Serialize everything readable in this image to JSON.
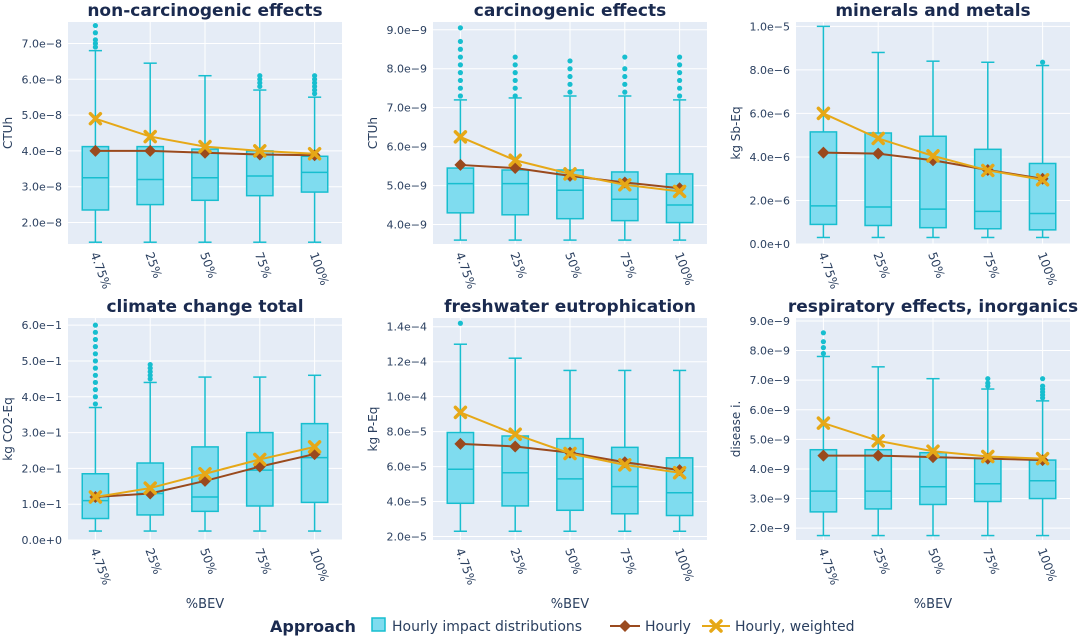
{
  "colors": {
    "plot_bg": "#e5ecf6",
    "grid": "#ffffff",
    "box_fill": "#7fdcef",
    "box_line": "#17becf",
    "hourly": "#9a4a1e",
    "weighted": "#e6a817",
    "text": "#2a3f5f",
    "title": "#1a2a4f"
  },
  "legend": {
    "title": "Approach",
    "items": [
      {
        "label": "Hourly impact distributions",
        "kind": "box"
      },
      {
        "label": "Hourly",
        "kind": "hourly"
      },
      {
        "label": "Hourly, weighted",
        "kind": "weighted"
      }
    ]
  },
  "chart_data": [
    {
      "type": "box+line",
      "title": "non-carcinogenic effects",
      "ylabel": "CTUh",
      "xlabel": "",
      "categories": [
        "4.75%",
        "25%",
        "50%",
        "75%",
        "100%"
      ],
      "ylim": [
        1.4e-08,
        7.6e-08
      ],
      "yticks": [
        2e-08,
        3e-08,
        4e-08,
        5e-08,
        6e-08,
        7e-08
      ],
      "ytick_labels": [
        "2.0e−8",
        "3.0e−8",
        "4.0e−8",
        "5.0e−8",
        "6.0e−8",
        "7.0e−8"
      ],
      "boxes": [
        {
          "min": 1.45e-08,
          "q1": 2.35e-08,
          "median": 3.25e-08,
          "q3": 4.12e-08,
          "max": 6.8e-08,
          "outliers": [
            6.9e-08,
            7e-08,
            7.1e-08,
            7.3e-08,
            7.5e-08
          ]
        },
        {
          "min": 1.45e-08,
          "q1": 2.5e-08,
          "median": 3.2e-08,
          "q3": 4.12e-08,
          "max": 6.45e-08,
          "outliers": []
        },
        {
          "min": 1.45e-08,
          "q1": 2.62e-08,
          "median": 3.25e-08,
          "q3": 4.05e-08,
          "max": 6.1e-08,
          "outliers": []
        },
        {
          "min": 1.45e-08,
          "q1": 2.75e-08,
          "median": 3.3e-08,
          "q3": 4e-08,
          "max": 5.7e-08,
          "outliers": [
            5.8e-08,
            5.9e-08,
            6e-08,
            6.1e-08
          ]
        },
        {
          "min": 1.45e-08,
          "q1": 2.85e-08,
          "median": 3.4e-08,
          "q3": 3.85e-08,
          "max": 5.5e-08,
          "outliers": [
            5.6e-08,
            5.7e-08,
            5.8e-08,
            5.9e-08,
            6e-08,
            6.1e-08
          ]
        }
      ],
      "series": [
        {
          "name": "Hourly",
          "values": [
            4e-08,
            4e-08,
            3.95e-08,
            3.9e-08,
            3.88e-08
          ]
        },
        {
          "name": "Hourly, weighted",
          "values": [
            4.9e-08,
            4.4e-08,
            4.12e-08,
            4e-08,
            3.92e-08
          ]
        }
      ]
    },
    {
      "type": "box+line",
      "title": "carcinogenic effects",
      "ylabel": "CTUh",
      "xlabel": "",
      "categories": [
        "4.75%",
        "25%",
        "50%",
        "75%",
        "100%"
      ],
      "ylim": [
        3.5e-09,
        9.2e-09
      ],
      "yticks": [
        4e-09,
        5e-09,
        6e-09,
        7e-09,
        8e-09,
        9e-09
      ],
      "ytick_labels": [
        "4.0e−9",
        "5.0e−9",
        "6.0e−9",
        "7.0e−9",
        "8.0e−9",
        "9.0e−9"
      ],
      "boxes": [
        {
          "min": 3.6e-09,
          "q1": 4.3e-09,
          "median": 5.05e-09,
          "q3": 5.45e-09,
          "max": 7.2e-09,
          "outliers": [
            7.3e-09,
            7.5e-09,
            7.7e-09,
            7.9e-09,
            8.1e-09,
            8.3e-09,
            8.5e-09,
            8.7e-09,
            9.05e-09
          ]
        },
        {
          "min": 3.6e-09,
          "q1": 4.25e-09,
          "median": 5.05e-09,
          "q3": 5.4e-09,
          "max": 7.25e-09,
          "outliers": [
            7.3e-09,
            7.5e-09,
            7.7e-09,
            7.9e-09,
            8.1e-09,
            8.3e-09
          ]
        },
        {
          "min": 3.6e-09,
          "q1": 4.15e-09,
          "median": 4.88e-09,
          "q3": 5.4e-09,
          "max": 7.3e-09,
          "outliers": [
            7.4e-09,
            7.6e-09,
            7.8e-09,
            8e-09,
            8.2e-09
          ]
        },
        {
          "min": 3.6e-09,
          "q1": 4.1e-09,
          "median": 4.65e-09,
          "q3": 5.35e-09,
          "max": 7.3e-09,
          "outliers": [
            7.4e-09,
            7.6e-09,
            7.8e-09,
            8e-09,
            8.3e-09
          ]
        },
        {
          "min": 3.6e-09,
          "q1": 4.05e-09,
          "median": 4.5e-09,
          "q3": 5.3e-09,
          "max": 7.2e-09,
          "outliers": [
            7.3e-09,
            7.5e-09,
            7.7e-09,
            7.9e-09,
            8.1e-09,
            8.3e-09
          ]
        }
      ],
      "series": [
        {
          "name": "Hourly",
          "values": [
            5.53e-09,
            5.45e-09,
            5.25e-09,
            5.08e-09,
            4.93e-09
          ]
        },
        {
          "name": "Hourly, weighted",
          "values": [
            6.25e-09,
            5.65e-09,
            5.3e-09,
            5.02e-09,
            4.85e-09
          ]
        }
      ]
    },
    {
      "type": "box+line",
      "title": "minerals and metals",
      "ylabel": "kg Sb-Eq",
      "xlabel": "",
      "categories": [
        "4.75%",
        "25%",
        "50%",
        "75%",
        "100%"
      ],
      "ylim": [
        0,
        1.02e-05
      ],
      "yticks": [
        0,
        2e-06,
        4e-06,
        6e-06,
        8e-06,
        1e-05
      ],
      "ytick_labels": [
        "0.0e+0",
        "2.0e−6",
        "4.0e−6",
        "6.0e−6",
        "8.0e−6",
        "1.0e−5"
      ],
      "boxes": [
        {
          "min": 3e-07,
          "q1": 9e-07,
          "median": 1.75e-06,
          "q3": 5.15e-06,
          "max": 1e-05,
          "outliers": []
        },
        {
          "min": 3e-07,
          "q1": 8.5e-07,
          "median": 1.7e-06,
          "q3": 5.1e-06,
          "max": 8.8e-06,
          "outliers": []
        },
        {
          "min": 3e-07,
          "q1": 7.5e-07,
          "median": 1.6e-06,
          "q3": 4.95e-06,
          "max": 8.4e-06,
          "outliers": []
        },
        {
          "min": 3e-07,
          "q1": 7e-07,
          "median": 1.5e-06,
          "q3": 4.35e-06,
          "max": 8.35e-06,
          "outliers": []
        },
        {
          "min": 3e-07,
          "q1": 6.5e-07,
          "median": 1.4e-06,
          "q3": 3.7e-06,
          "max": 8.2e-06,
          "outliers": [
            8.35e-06
          ]
        }
      ],
      "series": [
        {
          "name": "Hourly",
          "values": [
            4.2e-06,
            4.15e-06,
            3.85e-06,
            3.4e-06,
            3e-06
          ]
        },
        {
          "name": "Hourly, weighted",
          "values": [
            6e-06,
            4.85e-06,
            4.05e-06,
            3.38e-06,
            2.95e-06
          ]
        }
      ]
    },
    {
      "type": "box+line",
      "title": "climate change total",
      "ylabel": "kg CO2-Eq",
      "xlabel": "%BEV",
      "categories": [
        "4.75%",
        "25%",
        "50%",
        "75%",
        "100%"
      ],
      "ylim": [
        0,
        0.62
      ],
      "yticks": [
        0,
        0.1,
        0.2,
        0.3,
        0.4,
        0.5,
        0.6
      ],
      "ytick_labels": [
        "0.0e+0",
        "1.0e−1",
        "2.0e−1",
        "3.0e−1",
        "4.0e−1",
        "5.0e−1",
        "6.0e−1"
      ],
      "boxes": [
        {
          "min": 0.025,
          "q1": 0.06,
          "median": 0.11,
          "q3": 0.185,
          "max": 0.37,
          "outliers": [
            0.38,
            0.4,
            0.42,
            0.44,
            0.46,
            0.48,
            0.5,
            0.52,
            0.54,
            0.56,
            0.58,
            0.6
          ]
        },
        {
          "min": 0.025,
          "q1": 0.07,
          "median": 0.13,
          "q3": 0.215,
          "max": 0.44,
          "outliers": [
            0.45,
            0.46,
            0.47,
            0.48,
            0.49
          ]
        },
        {
          "min": 0.025,
          "q1": 0.08,
          "median": 0.12,
          "q3": 0.26,
          "max": 0.455,
          "outliers": []
        },
        {
          "min": 0.025,
          "q1": 0.095,
          "median": 0.195,
          "q3": 0.3,
          "max": 0.455,
          "outliers": []
        },
        {
          "min": 0.025,
          "q1": 0.105,
          "median": 0.23,
          "q3": 0.325,
          "max": 0.46,
          "outliers": []
        }
      ],
      "series": [
        {
          "name": "Hourly",
          "values": [
            0.12,
            0.13,
            0.165,
            0.205,
            0.24
          ]
        },
        {
          "name": "Hourly, weighted",
          "values": [
            0.12,
            0.145,
            0.185,
            0.225,
            0.26
          ]
        }
      ]
    },
    {
      "type": "box+line",
      "title": "freshwater eutrophication",
      "ylabel": "kg P-Eq",
      "xlabel": "%BEV",
      "categories": [
        "4.75%",
        "25%",
        "50%",
        "75%",
        "100%"
      ],
      "ylim": [
        1.8e-05,
        0.000145
      ],
      "yticks": [
        2e-05,
        4e-05,
        6e-05,
        8e-05,
        0.0001,
        0.00012,
        0.00014
      ],
      "ytick_labels": [
        "2.0e−5",
        "4.0e−5",
        "6.0e−5",
        "8.0e−5",
        "1.0e−4",
        "1.2e−4",
        "1.4e−4"
      ],
      "boxes": [
        {
          "min": 2.3e-05,
          "q1": 3.9e-05,
          "median": 5.85e-05,
          "q3": 7.95e-05,
          "max": 0.00013,
          "outliers": [
            0.000142
          ]
        },
        {
          "min": 2.3e-05,
          "q1": 3.75e-05,
          "median": 5.65e-05,
          "q3": 7.75e-05,
          "max": 0.000122,
          "outliers": []
        },
        {
          "min": 2.3e-05,
          "q1": 3.5e-05,
          "median": 5.3e-05,
          "q3": 7.6e-05,
          "max": 0.000115,
          "outliers": []
        },
        {
          "min": 2.3e-05,
          "q1": 3.3e-05,
          "median": 4.85e-05,
          "q3": 7.1e-05,
          "max": 0.000115,
          "outliers": []
        },
        {
          "min": 2.3e-05,
          "q1": 3.2e-05,
          "median": 4.5e-05,
          "q3": 6.5e-05,
          "max": 0.000115,
          "outliers": []
        }
      ],
      "series": [
        {
          "name": "Hourly",
          "values": [
            7.3e-05,
            7.15e-05,
            6.8e-05,
            6.25e-05,
            5.8e-05
          ]
        },
        {
          "name": "Hourly, weighted",
          "values": [
            9.1e-05,
            7.85e-05,
            6.75e-05,
            6.1e-05,
            5.65e-05
          ]
        }
      ]
    },
    {
      "type": "box+line",
      "title": "respiratory effects, inorganics",
      "ylabel": "disease i.",
      "xlabel": "%BEV",
      "categories": [
        "4.75%",
        "25%",
        "50%",
        "75%",
        "100%"
      ],
      "ylim": [
        1.6e-09,
        9.1e-09
      ],
      "yticks": [
        2e-09,
        3e-09,
        4e-09,
        5e-09,
        6e-09,
        7e-09,
        8e-09,
        9e-09
      ],
      "ytick_labels": [
        "2.0e−9",
        "3.0e−9",
        "4.0e−9",
        "5.0e−9",
        "6.0e−9",
        "7.0e−9",
        "8.0e−9",
        "9.0e−9"
      ],
      "boxes": [
        {
          "min": 1.75e-09,
          "q1": 2.55e-09,
          "median": 3.25e-09,
          "q3": 4.65e-09,
          "max": 7.8e-09,
          "outliers": [
            7.9e-09,
            8.1e-09,
            8.3e-09,
            8.6e-09
          ]
        },
        {
          "min": 1.75e-09,
          "q1": 2.65e-09,
          "median": 3.25e-09,
          "q3": 4.65e-09,
          "max": 7.45e-09,
          "outliers": []
        },
        {
          "min": 1.75e-09,
          "q1": 2.8e-09,
          "median": 3.4e-09,
          "q3": 4.55e-09,
          "max": 7.05e-09,
          "outliers": []
        },
        {
          "min": 1.75e-09,
          "q1": 2.9e-09,
          "median": 3.5e-09,
          "q3": 4.35e-09,
          "max": 6.7e-09,
          "outliers": [
            6.8e-09,
            6.9e-09,
            7.05e-09
          ]
        },
        {
          "min": 1.75e-09,
          "q1": 3e-09,
          "median": 3.6e-09,
          "q3": 4.3e-09,
          "max": 6.3e-09,
          "outliers": [
            6.4e-09,
            6.5e-09,
            6.6e-09,
            6.7e-09,
            6.8e-09,
            7.05e-09
          ]
        }
      ],
      "series": [
        {
          "name": "Hourly",
          "values": [
            4.45e-09,
            4.45e-09,
            4.4e-09,
            4.35e-09,
            4.3e-09
          ]
        },
        {
          "name": "Hourly, weighted",
          "values": [
            5.55e-09,
            4.95e-09,
            4.6e-09,
            4.42e-09,
            4.35e-09
          ]
        }
      ]
    }
  ]
}
